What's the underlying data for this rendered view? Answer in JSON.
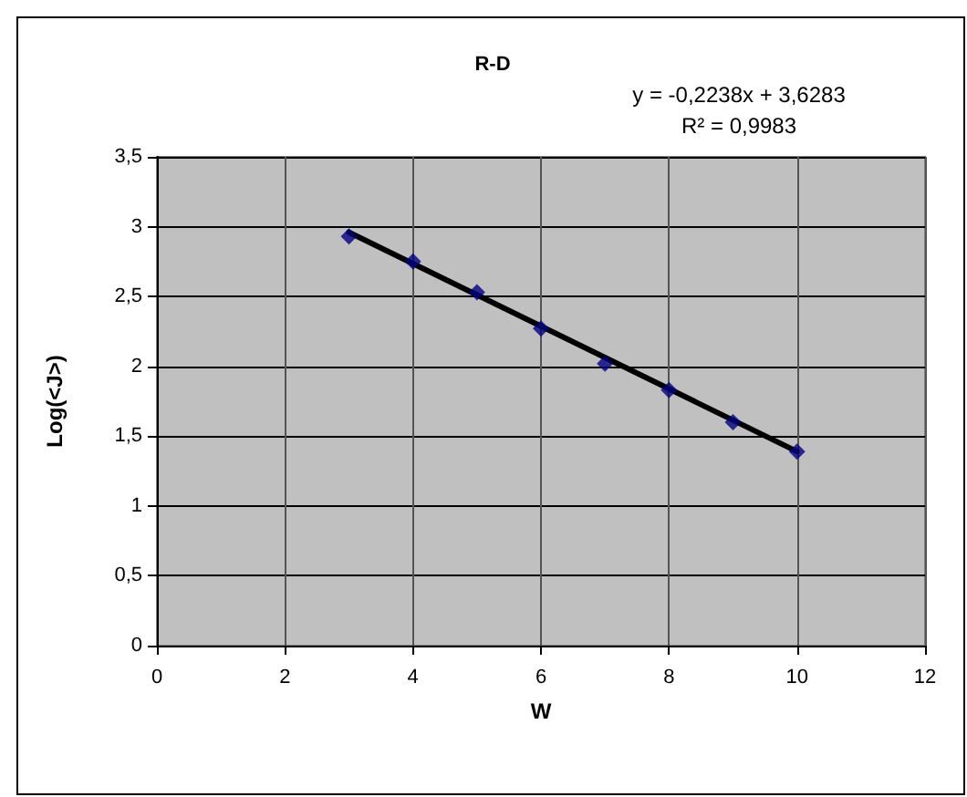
{
  "chart_data": {
    "type": "scatter",
    "title": "R-D",
    "xlabel": "W",
    "ylabel": "Log(<J>)",
    "annotations": [
      "y = -0,2238x + 3,6283",
      "R² = 0,9983"
    ],
    "series": [
      {
        "color": "#00007f",
        "marker": "diamond",
        "x": [
          3,
          4,
          5,
          6,
          7,
          8,
          9,
          10
        ],
        "values": [
          2.93,
          2.75,
          2.53,
          2.27,
          2.02,
          1.83,
          1.6,
          1.39
        ]
      },
      {
        "type": "line",
        "color": "#000000",
        "marker": "none",
        "x": [
          3,
          10
        ],
        "values": [
          2.96,
          1.39
        ]
      }
    ],
    "xlim": [
      0,
      12
    ],
    "xticks": [
      0,
      2,
      4,
      6,
      8,
      10,
      12
    ],
    "ylim": [
      0,
      3.5
    ],
    "yticks": [
      0,
      {
        "value": 0.5,
        "label": "0,5"
      },
      1,
      {
        "value": 1.5,
        "label": "1,5"
      },
      2,
      {
        "value": 2.5,
        "label": "2,5"
      },
      3,
      {
        "value": 3.5,
        "label": "3,5"
      }
    ],
    "grid": true
  }
}
